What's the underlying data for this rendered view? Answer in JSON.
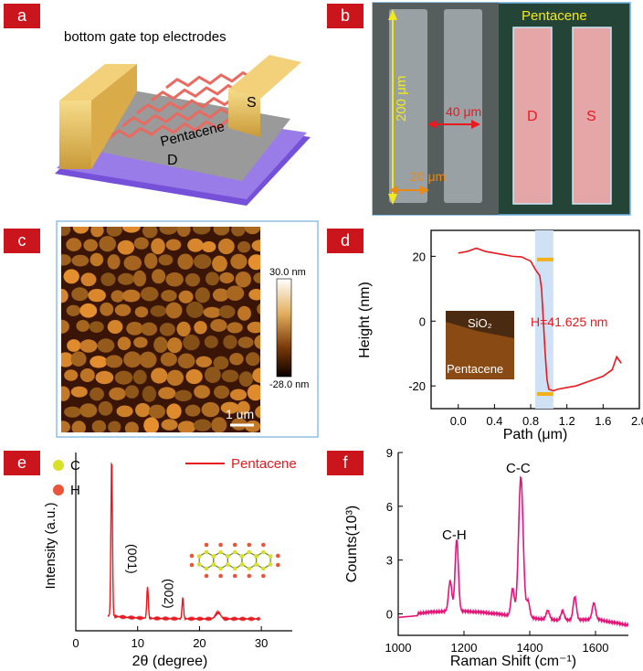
{
  "panels": {
    "a": {
      "label": "a",
      "caption": "bottom gate top electrodes",
      "material": "Pentacene",
      "drain": "D",
      "source": "S"
    },
    "b": {
      "label": "b",
      "title": "Pentacene",
      "length": "200 μm",
      "width": "20 μm",
      "gap": "40 μm",
      "drain": "D",
      "source": "S"
    },
    "c": {
      "label": "c",
      "scale_max": "30.0 nm",
      "scale_min": "-28.0 nm",
      "scalebar": "1 um"
    },
    "d": {
      "label": "d",
      "inset_top": "SiO₂",
      "inset_bottom": "Pentacene",
      "annotation": "H=41.625 nm"
    },
    "e": {
      "label": "e",
      "legend_c": "C",
      "legend_h": "H",
      "peak1": "(001)",
      "peak2": "(002)"
    },
    "f": {
      "label": "f",
      "peak_ch": "C-H",
      "peak_cc": "C-C"
    }
  },
  "colors": {
    "label_bg": "#c9151b",
    "red_line": "#e8191f",
    "magenta_line": "#e6157a",
    "carbon": "#d8e02a",
    "hydrogen": "#e8553a"
  },
  "chart_data": [
    {
      "type": "line",
      "panel": "d",
      "xlabel": "Path (μm)",
      "ylabel": "Height (nm)",
      "xlim": [
        -0.3,
        2.0
      ],
      "ylim": [
        -27,
        28
      ],
      "xticks": [
        0.0,
        0.4,
        0.8,
        1.2,
        1.6,
        2.0
      ],
      "xtick_labels": [
        "0.0",
        "0.4",
        "0.8",
        "1.2",
        "1.6",
        "2.0"
      ],
      "yticks": [
        -20,
        0,
        20
      ],
      "ytick_labels": [
        "-20",
        "0",
        "20"
      ],
      "x": [
        0.0,
        0.1,
        0.2,
        0.3,
        0.4,
        0.5,
        0.6,
        0.7,
        0.8,
        0.85,
        0.9,
        0.92,
        0.94,
        0.96,
        0.98,
        1.0,
        1.05,
        1.1,
        1.2,
        1.3,
        1.4,
        1.5,
        1.6,
        1.7,
        1.75,
        1.8
      ],
      "y": [
        21,
        21.5,
        22.5,
        21.5,
        21,
        20.5,
        20,
        19.8,
        18.5,
        16,
        14,
        10,
        0,
        -10,
        -18,
        -21,
        -21.5,
        -21,
        -20.5,
        -20,
        -19,
        -18,
        -17,
        -15,
        -11,
        -13
      ]
    },
    {
      "type": "line",
      "panel": "e",
      "series": [
        {
          "name": "Pentacene"
        }
      ],
      "xlabel": "2θ (degree)",
      "ylabel": "Intensity (a.u.)",
      "xlim": [
        0,
        35
      ],
      "xticks": [
        0,
        10,
        20,
        30
      ],
      "xtick_labels": [
        "0",
        "10",
        "20",
        "30"
      ],
      "peaks_x": [
        5.8,
        11.6,
        17.3,
        23.0
      ],
      "peaks_height": [
        1.0,
        0.2,
        0.13,
        0.04
      ]
    },
    {
      "type": "line",
      "panel": "f",
      "xlabel": "Raman Shift (cm⁻¹)",
      "ylabel": "Counts(10³)",
      "xlim": [
        1000,
        1700
      ],
      "ylim": [
        -1.2,
        9
      ],
      "xticks": [
        1000,
        1200,
        1400,
        1600
      ],
      "xtick_labels": [
        "1000",
        "1200",
        "1400",
        "1600"
      ],
      "yticks": [
        0,
        3,
        6,
        9
      ],
      "ytick_labels": [
        "0",
        "3",
        "6",
        "9"
      ],
      "peaks_x": [
        1158,
        1178,
        1348,
        1373,
        1395,
        1455,
        1500,
        1537,
        1595
      ],
      "peaks_height": [
        1.7,
        4.0,
        1.5,
        7.8,
        0.9,
        0.5,
        0.5,
        1.3,
        0.9
      ]
    }
  ]
}
